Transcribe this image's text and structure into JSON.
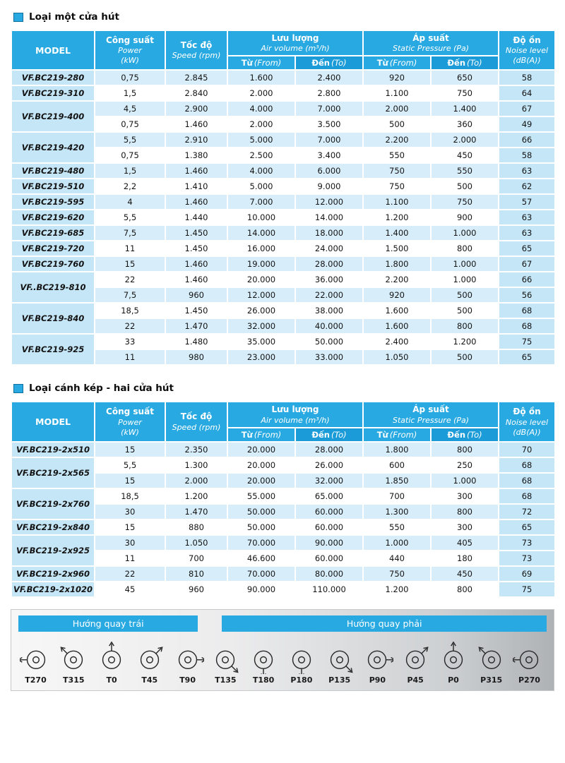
{
  "sections": {
    "single": {
      "title": "Loại một cửa hút"
    },
    "double": {
      "title": "Loại cánh kép - hai cửa hút"
    }
  },
  "headers": {
    "model": "MODEL",
    "power_vn": "Công suất",
    "power_en": "Power",
    "power_unit": "(kW)",
    "speed_vn": "Tốc độ",
    "speed_en": "Speed (rpm)",
    "air_vn": "Lưu lượng",
    "air_en": "Air volume (m³/h)",
    "pressure_vn": "Áp suất",
    "pressure_en": "Static Pressure (Pa)",
    "from_vn": "Từ",
    "from_en": "(From)",
    "to_vn": "Đến",
    "to_en": "(To)",
    "noise_vn": "Độ ồn",
    "noise_en": "Noise level",
    "noise_unit": "(dB(A))"
  },
  "single_table": {
    "groups": [
      {
        "model": "VF.BC219-280",
        "rows": [
          [
            "0,75",
            "2.845",
            "1.600",
            "2.400",
            "920",
            "650",
            "58"
          ]
        ]
      },
      {
        "model": "VF.BC219-310",
        "rows": [
          [
            "1,5",
            "2.840",
            "2.000",
            "2.800",
            "1.100",
            "750",
            "64"
          ]
        ]
      },
      {
        "model": "VF.BC219-400",
        "rows": [
          [
            "4,5",
            "2.900",
            "4.000",
            "7.000",
            "2.000",
            "1.400",
            "67"
          ],
          [
            "0,75",
            "1.460",
            "2.000",
            "3.500",
            "500",
            "360",
            "49"
          ]
        ]
      },
      {
        "model": "VF.BC219-420",
        "rows": [
          [
            "5,5",
            "2.910",
            "5.000",
            "7.000",
            "2.200",
            "2.000",
            "66"
          ],
          [
            "0,75",
            "1.380",
            "2.500",
            "3.400",
            "550",
            "450",
            "58"
          ]
        ]
      },
      {
        "model": "VF.BC219-480",
        "rows": [
          [
            "1,5",
            "1.460",
            "4.000",
            "6.000",
            "750",
            "550",
            "63"
          ]
        ]
      },
      {
        "model": "VF.BC219-510",
        "rows": [
          [
            "2,2",
            "1.410",
            "5.000",
            "9.000",
            "750",
            "500",
            "62"
          ]
        ]
      },
      {
        "model": "VF.BC219-595",
        "rows": [
          [
            "4",
            "1.460",
            "7.000",
            "12.000",
            "1.100",
            "750",
            "57"
          ]
        ]
      },
      {
        "model": "VF.BC219-620",
        "rows": [
          [
            "5,5",
            "1.440",
            "10.000",
            "14.000",
            "1.200",
            "900",
            "63"
          ]
        ]
      },
      {
        "model": "VF.BC219-685",
        "rows": [
          [
            "7,5",
            "1.450",
            "14.000",
            "18.000",
            "1.400",
            "1.000",
            "63"
          ]
        ]
      },
      {
        "model": "VF.BC219-720",
        "rows": [
          [
            "11",
            "1.450",
            "16.000",
            "24.000",
            "1.500",
            "800",
            "65"
          ]
        ]
      },
      {
        "model": "VF.BC219-760",
        "rows": [
          [
            "15",
            "1.460",
            "19.000",
            "28.000",
            "1.800",
            "1.000",
            "67"
          ]
        ]
      },
      {
        "model": "VF..BC219-810",
        "rows": [
          [
            "22",
            "1.460",
            "20.000",
            "36.000",
            "2.200",
            "1.000",
            "66"
          ],
          [
            "7,5",
            "960",
            "12.000",
            "22.000",
            "920",
            "500",
            "56"
          ]
        ]
      },
      {
        "model": "VF.BC219-840",
        "rows": [
          [
            "18,5",
            "1.450",
            "26.000",
            "38.000",
            "1.600",
            "500",
            "68"
          ],
          [
            "22",
            "1.470",
            "32.000",
            "40.000",
            "1.600",
            "800",
            "68"
          ]
        ]
      },
      {
        "model": "VF.BC219-925",
        "rows": [
          [
            "33",
            "1.480",
            "35.000",
            "50.000",
            "2.400",
            "1.200",
            "75"
          ],
          [
            "11",
            "980",
            "23.000",
            "33.000",
            "1.050",
            "500",
            "65"
          ]
        ]
      }
    ]
  },
  "double_table": {
    "groups": [
      {
        "model": "VF.BC219-2x510",
        "rows": [
          [
            "15",
            "2.350",
            "20.000",
            "28.000",
            "1.800",
            "800",
            "70"
          ]
        ]
      },
      {
        "model": "VF.BC219-2x565",
        "rows": [
          [
            "5,5",
            "1.300",
            "20.000",
            "26.000",
            "600",
            "250",
            "68"
          ],
          [
            "15",
            "2.000",
            "20.000",
            "32.000",
            "1.850",
            "1.000",
            "68"
          ]
        ]
      },
      {
        "model": "VF.BC219-2x760",
        "rows": [
          [
            "18,5",
            "1.200",
            "55.000",
            "65.000",
            "700",
            "300",
            "68"
          ],
          [
            "30",
            "1.470",
            "50.000",
            "60.000",
            "1.300",
            "800",
            "72"
          ]
        ]
      },
      {
        "model": "VF.BC219-2x840",
        "rows": [
          [
            "15",
            "880",
            "50.000",
            "60.000",
            "550",
            "300",
            "65"
          ]
        ]
      },
      {
        "model": "VF.BC219-2x925",
        "rows": [
          [
            "30",
            "1.050",
            "70.000",
            "90.000",
            "1.000",
            "405",
            "73"
          ],
          [
            "11",
            "700",
            "46.600",
            "60.000",
            "440",
            "180",
            "73"
          ]
        ]
      },
      {
        "model": "VF.BC219-2x960",
        "rows": [
          [
            "22",
            "810",
            "70.000",
            "80.000",
            "750",
            "450",
            "69"
          ]
        ]
      },
      {
        "model": "VF.BC219-2x1020",
        "rows": [
          [
            "45",
            "960",
            "90.000",
            "110.000",
            "1.200",
            "800",
            "75"
          ]
        ]
      }
    ]
  },
  "rotation": {
    "left_title": "Hướng quay trái",
    "right_title": "Hướng quay phải",
    "items": [
      "T270",
      "T315",
      "T0",
      "T45",
      "T90",
      "T135",
      "T180",
      "P180",
      "P135",
      "P90",
      "P45",
      "P0",
      "P315",
      "P270"
    ]
  },
  "colors": {
    "header_blue": "#29a9e1",
    "subheader_to_blue": "#1b9bd8",
    "model_cell_blue": "#c5e6f7",
    "row_stripe_blue": "#d7edf9"
  }
}
